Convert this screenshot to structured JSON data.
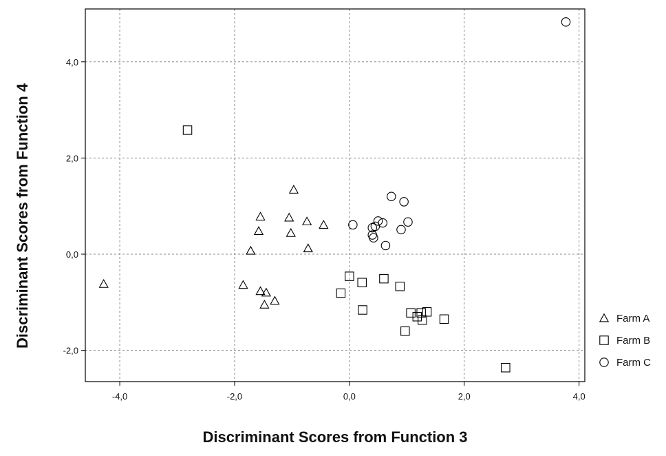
{
  "chart_data": {
    "type": "scatter",
    "title": "",
    "xlabel": "Discriminant Scores from Function 3",
    "ylabel": "Discriminant Scores from Function 4",
    "xlim": [
      -4.6,
      4.1
    ],
    "ylim": [
      -2.65,
      5.1
    ],
    "x_ticks": [
      -4,
      -2,
      0,
      2,
      4
    ],
    "x_tick_labels": [
      "-4,0",
      "-2,0",
      "0,0",
      "2,0",
      "4,0"
    ],
    "y_ticks": [
      -2,
      0,
      2,
      4
    ],
    "y_tick_labels": [
      "-2,0",
      "0,0",
      "2,0",
      "4,0"
    ],
    "grid": true,
    "legend_position": "right",
    "series": [
      {
        "name": "Farm A",
        "marker": "triangle",
        "points": [
          [
            -4.28,
            -0.62
          ],
          [
            -1.55,
            0.78
          ],
          [
            -1.58,
            0.48
          ],
          [
            -1.72,
            0.07
          ],
          [
            -1.05,
            0.76
          ],
          [
            -1.02,
            0.44
          ],
          [
            -0.97,
            1.34
          ],
          [
            -0.74,
            0.68
          ],
          [
            -0.45,
            0.61
          ],
          [
            -0.72,
            0.12
          ],
          [
            -1.85,
            -0.64
          ],
          [
            -1.55,
            -0.77
          ],
          [
            -1.45,
            -0.8
          ],
          [
            -1.3,
            -0.97
          ],
          [
            -1.48,
            -1.05
          ]
        ]
      },
      {
        "name": "Farm B",
        "marker": "square",
        "points": [
          [
            -2.82,
            2.58
          ],
          [
            0.0,
            -0.46
          ],
          [
            -0.15,
            -0.81
          ],
          [
            0.22,
            -0.59
          ],
          [
            0.6,
            -0.51
          ],
          [
            0.88,
            -0.67
          ],
          [
            0.23,
            -1.16
          ],
          [
            1.07,
            -1.22
          ],
          [
            1.18,
            -1.3
          ],
          [
            1.25,
            -1.22
          ],
          [
            1.27,
            -1.37
          ],
          [
            1.35,
            -1.2
          ],
          [
            1.65,
            -1.35
          ],
          [
            0.97,
            -1.6
          ],
          [
            2.72,
            -2.36
          ]
        ]
      },
      {
        "name": "Farm C",
        "marker": "circle",
        "points": [
          [
            3.77,
            4.83
          ],
          [
            0.73,
            1.2
          ],
          [
            0.95,
            1.09
          ],
          [
            0.06,
            0.61
          ],
          [
            0.4,
            0.55
          ],
          [
            0.45,
            0.58
          ],
          [
            0.5,
            0.69
          ],
          [
            0.58,
            0.65
          ],
          [
            0.4,
            0.4
          ],
          [
            0.42,
            0.34
          ],
          [
            0.63,
            0.18
          ],
          [
            0.9,
            0.51
          ],
          [
            1.02,
            0.67
          ]
        ]
      }
    ]
  }
}
